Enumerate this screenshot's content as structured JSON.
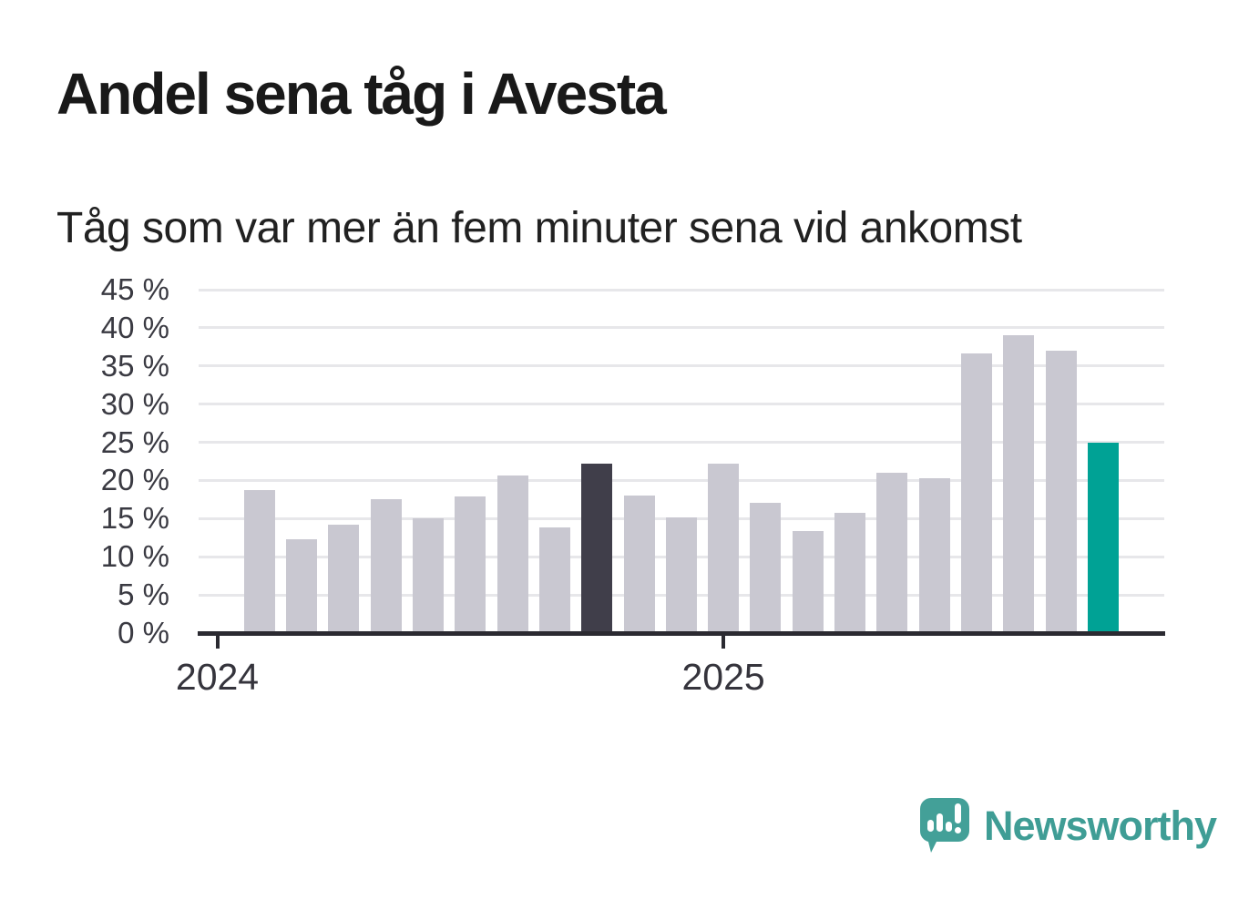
{
  "header": {
    "title": "Andel sena tåg i Avesta",
    "subtitle": "Tåg som var mer än fem minuter sena vid ankomst"
  },
  "chart_data": {
    "type": "bar",
    "title": "Andel sena tåg i Avesta",
    "subtitle": "Tåg som var mer än fem minuter sena vid ankomst",
    "unit": "%",
    "ylim": [
      0,
      45
    ],
    "grid": true,
    "legend": "none",
    "yticks": [
      {
        "value": 0,
        "label": "0 %"
      },
      {
        "value": 5,
        "label": "5 %"
      },
      {
        "value": 10,
        "label": "10 %"
      },
      {
        "value": 15,
        "label": "15 %"
      },
      {
        "value": 20,
        "label": "20 %"
      },
      {
        "value": 25,
        "label": "25 %"
      },
      {
        "value": 30,
        "label": "30 %"
      },
      {
        "value": 35,
        "label": "35 %"
      },
      {
        "value": 40,
        "label": "40 %"
      },
      {
        "value": 45,
        "label": "45 %"
      }
    ],
    "x_ticks": [
      {
        "label": "2024",
        "slot": 0
      },
      {
        "label": "2025",
        "slot": 12
      }
    ],
    "bars": [
      {
        "slot": 1,
        "value": 18.8,
        "role": "default"
      },
      {
        "slot": 2,
        "value": 12.3,
        "role": "default"
      },
      {
        "slot": 3,
        "value": 14.2,
        "role": "default"
      },
      {
        "slot": 4,
        "value": 17.6,
        "role": "default"
      },
      {
        "slot": 5,
        "value": 15.0,
        "role": "default"
      },
      {
        "slot": 6,
        "value": 17.9,
        "role": "default"
      },
      {
        "slot": 7,
        "value": 20.7,
        "role": "default"
      },
      {
        "slot": 8,
        "value": 13.9,
        "role": "default"
      },
      {
        "slot": 9,
        "value": 22.2,
        "role": "dark"
      },
      {
        "slot": 10,
        "value": 18.0,
        "role": "default"
      },
      {
        "slot": 11,
        "value": 15.2,
        "role": "default"
      },
      {
        "slot": 12,
        "value": 22.2,
        "role": "default"
      },
      {
        "slot": 13,
        "value": 17.1,
        "role": "default"
      },
      {
        "slot": 14,
        "value": 13.4,
        "role": "default"
      },
      {
        "slot": 15,
        "value": 15.8,
        "role": "default"
      },
      {
        "slot": 16,
        "value": 21.0,
        "role": "default"
      },
      {
        "slot": 17,
        "value": 20.3,
        "role": "default"
      },
      {
        "slot": 18,
        "value": 36.6,
        "role": "default"
      },
      {
        "slot": 19,
        "value": 39.0,
        "role": "default"
      },
      {
        "slot": 20,
        "value": 37.0,
        "role": "default"
      },
      {
        "slot": 21,
        "value": 25.0,
        "role": "accent"
      }
    ],
    "colors": {
      "default": "#c9c8d1",
      "dark": "#403e4a",
      "accent": "#00a295",
      "gridline": "#e7e7ea",
      "axis": "#2b2a31"
    }
  },
  "footer": {
    "brand": "Newsworthy",
    "brand_color": "#3f9d95"
  }
}
